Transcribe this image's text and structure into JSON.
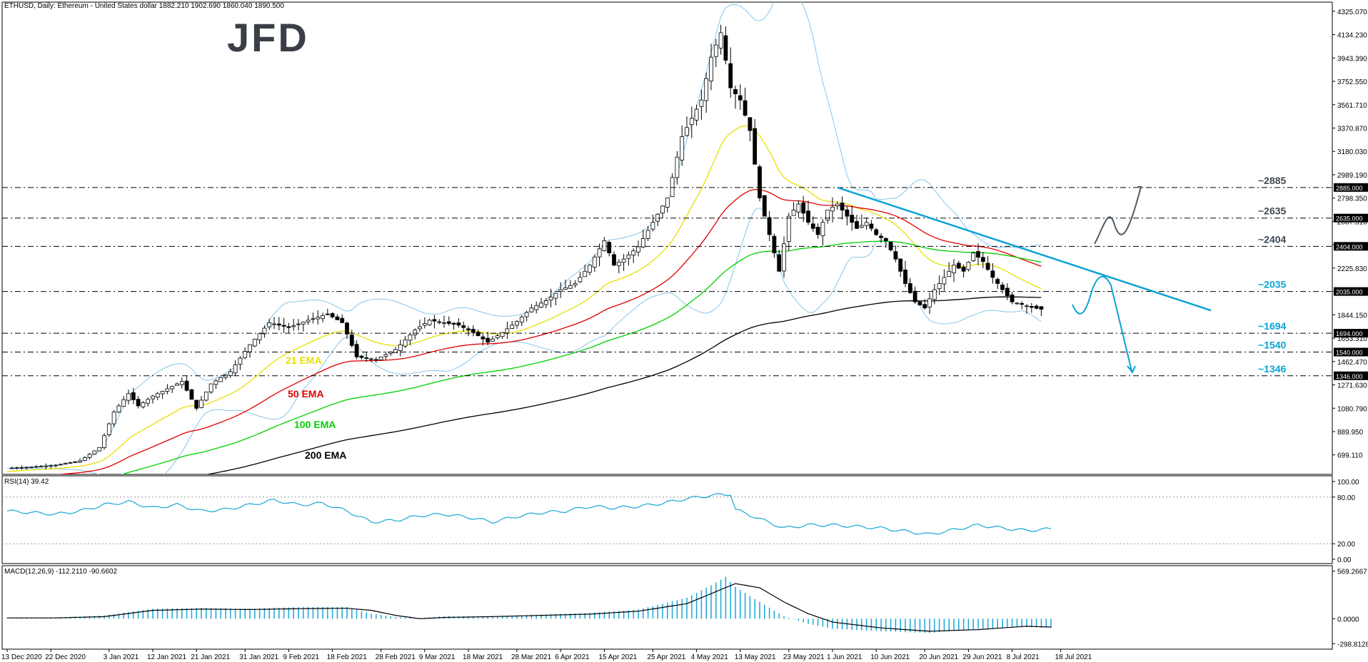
{
  "header": {
    "symbol_info": "ETHUSD, Daily:  Ethereum - United States dollar  1882.210 1902.690 1860.040 1890.500",
    "brand": "JFD"
  },
  "chart_data": {
    "type": "candlestick",
    "price_axis_ticks": [
      "4325.070",
      "4134.230",
      "3943.390",
      "3752.550",
      "3561.710",
      "3370.870",
      "3180.030",
      "2989.190",
      "2798.350",
      "2607.510",
      "2416.670",
      "2225.830",
      "2034.990",
      "1844.150",
      "1653.310",
      "1462.470",
      "1271.630",
      "1080.790",
      "889.950",
      "699.110"
    ],
    "price_range": [
      540,
      4400
    ],
    "date_ticks": [
      {
        "label": "13 Dec 2020",
        "i": 0
      },
      {
        "label": "22 Dec 2020",
        "i": 9
      },
      {
        "label": "3 Jan 2021",
        "i": 21
      },
      {
        "label": "12 Jan 2021",
        "i": 30
      },
      {
        "label": "21 Jan 2021",
        "i": 39
      },
      {
        "label": "31 Jan 2021",
        "i": 49
      },
      {
        "label": "9 Feb 2021",
        "i": 58
      },
      {
        "label": "18 Feb 2021",
        "i": 67
      },
      {
        "label": "28 Feb 2021",
        "i": 77
      },
      {
        "label": "9 Mar 2021",
        "i": 86
      },
      {
        "label": "18 Mar 2021",
        "i": 95
      },
      {
        "label": "28 Mar 2021",
        "i": 105
      },
      {
        "label": "6 Apr 2021",
        "i": 114
      },
      {
        "label": "15 Apr 2021",
        "i": 123
      },
      {
        "label": "25 Apr 2021",
        "i": 133
      },
      {
        "label": "4 May 2021",
        "i": 142
      },
      {
        "label": "13 May 2021",
        "i": 151
      },
      {
        "label": "23 May 2021",
        "i": 161
      },
      {
        "label": "1 Jun 2021",
        "i": 170
      },
      {
        "label": "10 Jun 2021",
        "i": 179
      },
      {
        "label": "20 Jun 2021",
        "i": 189
      },
      {
        "label": "29 Jun 2021",
        "i": 198
      },
      {
        "label": "8 Jul 2021",
        "i": 207
      },
      {
        "label": "18 Jul 2021",
        "i": 217
      }
    ],
    "closes": [
      [
        0,
        590
      ],
      [
        5,
        600
      ],
      [
        10,
        615
      ],
      [
        15,
        650
      ],
      [
        19,
        760
      ],
      [
        22,
        1050
      ],
      [
        25,
        1200
      ],
      [
        27,
        1100
      ],
      [
        30,
        1180
      ],
      [
        33,
        1240
      ],
      [
        36,
        1300
      ],
      [
        39,
        1080
      ],
      [
        42,
        1280
      ],
      [
        46,
        1380
      ],
      [
        50,
        1600
      ],
      [
        54,
        1780
      ],
      [
        58,
        1740
      ],
      [
        62,
        1800
      ],
      [
        66,
        1850
      ],
      [
        69,
        1780
      ],
      [
        72,
        1500
      ],
      [
        76,
        1480
      ],
      [
        80,
        1560
      ],
      [
        84,
        1720
      ],
      [
        87,
        1800
      ],
      [
        90,
        1780
      ],
      [
        93,
        1760
      ],
      [
        96,
        1700
      ],
      [
        99,
        1620
      ],
      [
        102,
        1700
      ],
      [
        105,
        1790
      ],
      [
        108,
        1900
      ],
      [
        111,
        1960
      ],
      [
        114,
        2050
      ],
      [
        117,
        2100
      ],
      [
        120,
        2250
      ],
      [
        123,
        2450
      ],
      [
        125,
        2250
      ],
      [
        127,
        2300
      ],
      [
        130,
        2400
      ],
      [
        133,
        2600
      ],
      [
        136,
        2800
      ],
      [
        139,
        3300
      ],
      [
        141,
        3450
      ],
      [
        143,
        3600
      ],
      [
        145,
        3950
      ],
      [
        147,
        4150
      ],
      [
        149,
        3700
      ],
      [
        151,
        3600
      ],
      [
        153,
        3350
      ],
      [
        155,
        2800
      ],
      [
        157,
        2500
      ],
      [
        159,
        2200
      ],
      [
        161,
        2650
      ],
      [
        163,
        2750
      ],
      [
        165,
        2600
      ],
      [
        167,
        2500
      ],
      [
        169,
        2700
      ],
      [
        171,
        2750
      ],
      [
        173,
        2650
      ],
      [
        175,
        2550
      ],
      [
        177,
        2600
      ],
      [
        179,
        2500
      ],
      [
        181,
        2450
      ],
      [
        183,
        2300
      ],
      [
        185,
        2100
      ],
      [
        187,
        1950
      ],
      [
        189,
        1900
      ],
      [
        191,
        2050
      ],
      [
        193,
        2150
      ],
      [
        195,
        2250
      ],
      [
        197,
        2200
      ],
      [
        199,
        2350
      ],
      [
        201,
        2280
      ],
      [
        203,
        2150
      ],
      [
        205,
        2050
      ],
      [
        207,
        1950
      ],
      [
        209,
        1930
      ],
      [
        211,
        1905
      ],
      [
        213,
        1890
      ]
    ],
    "indicators": {
      "ema21_label": "21 EMA",
      "ema50_label": "50 EMA",
      "ema100_label": "100 EMA",
      "ema200_label": "200 EMA",
      "ema21_color": "#e8e000",
      "ema50_color": "#e00000",
      "ema100_color": "#00d000",
      "ema200_color": "#000000",
      "bollinger_color": "#87c6ea",
      "candle_up": "#ffffff",
      "candle_down": "#000000"
    },
    "horizontal_levels": [
      {
        "value": 2885,
        "label": "~2885",
        "axis": "2885.000",
        "color": "#404a55"
      },
      {
        "value": 2635,
        "label": "~2635",
        "axis": "2635.000",
        "color": "#404a55"
      },
      {
        "value": 2404,
        "label": "~2404",
        "axis": "2404.000",
        "color": "#404a55"
      },
      {
        "value": 2035,
        "label": "~2035",
        "axis": "2035.000",
        "color": "#0aa3d4"
      },
      {
        "value": 1694,
        "label": "~1694",
        "axis": "1694.000",
        "color": "#0aa3d4"
      },
      {
        "value": 1540,
        "label": "~1540",
        "axis": "1540.000",
        "color": "#0aa3d4"
      },
      {
        "value": 1346,
        "label": "~1346",
        "axis": "1346.000",
        "color": "#0aa3d4"
      }
    ],
    "trendline_color": "#0aa3d4",
    "rsi": {
      "title": "RSI(14) 39.42",
      "ticks": [
        "100.00",
        "80.00",
        "20.00",
        "0.00"
      ],
      "levels": [
        80,
        20
      ],
      "color": "#1aa6d6",
      "values": [
        [
          0,
          62
        ],
        [
          5,
          60
        ],
        [
          10,
          58
        ],
        [
          15,
          62
        ],
        [
          20,
          70
        ],
        [
          25,
          74
        ],
        [
          30,
          66
        ],
        [
          35,
          70
        ],
        [
          40,
          62
        ],
        [
          45,
          64
        ],
        [
          50,
          70
        ],
        [
          55,
          76
        ],
        [
          60,
          70
        ],
        [
          65,
          72
        ],
        [
          70,
          62
        ],
        [
          75,
          48
        ],
        [
          80,
          50
        ],
        [
          85,
          56
        ],
        [
          90,
          58
        ],
        [
          95,
          54
        ],
        [
          100,
          48
        ],
        [
          105,
          55
        ],
        [
          110,
          60
        ],
        [
          115,
          62
        ],
        [
          120,
          68
        ],
        [
          125,
          66
        ],
        [
          130,
          68
        ],
        [
          135,
          72
        ],
        [
          140,
          78
        ],
        [
          145,
          82
        ],
        [
          149,
          84
        ],
        [
          150,
          64
        ],
        [
          155,
          52
        ],
        [
          160,
          40
        ],
        [
          165,
          44
        ],
        [
          170,
          44
        ],
        [
          175,
          42
        ],
        [
          180,
          40
        ],
        [
          185,
          36
        ],
        [
          190,
          32
        ],
        [
          195,
          38
        ],
        [
          200,
          44
        ],
        [
          205,
          40
        ],
        [
          210,
          37
        ],
        [
          215,
          39
        ]
      ]
    },
    "macd": {
      "title": "MACD(12,26,9) -112.2110 -90.6602",
      "ticks": [
        "569.2667",
        "0.0000",
        "-298.8128"
      ],
      "range": [
        -330,
        600
      ],
      "hist_color": "#1aa6d6",
      "signal_color": "#000000",
      "histogram": [
        [
          0,
          8
        ],
        [
          10,
          10
        ],
        [
          20,
          40
        ],
        [
          30,
          120
        ],
        [
          40,
          130
        ],
        [
          50,
          120
        ],
        [
          60,
          140
        ],
        [
          70,
          140
        ],
        [
          75,
          60
        ],
        [
          80,
          20
        ],
        [
          85,
          10
        ],
        [
          90,
          30
        ],
        [
          100,
          30
        ],
        [
          110,
          50
        ],
        [
          120,
          70
        ],
        [
          130,
          110
        ],
        [
          140,
          250
        ],
        [
          145,
          400
        ],
        [
          148,
          500
        ],
        [
          150,
          380
        ],
        [
          155,
          200
        ],
        [
          160,
          30
        ],
        [
          165,
          -60
        ],
        [
          170,
          -120
        ],
        [
          180,
          -150
        ],
        [
          190,
          -170
        ],
        [
          200,
          -120
        ],
        [
          210,
          -100
        ],
        [
          215,
          -110
        ]
      ],
      "signal": [
        [
          0,
          10
        ],
        [
          10,
          10
        ],
        [
          20,
          25
        ],
        [
          30,
          100
        ],
        [
          40,
          115
        ],
        [
          50,
          110
        ],
        [
          60,
          120
        ],
        [
          70,
          125
        ],
        [
          75,
          100
        ],
        [
          80,
          40
        ],
        [
          85,
          0
        ],
        [
          90,
          15
        ],
        [
          100,
          25
        ],
        [
          110,
          40
        ],
        [
          120,
          55
        ],
        [
          130,
          90
        ],
        [
          140,
          180
        ],
        [
          145,
          300
        ],
        [
          150,
          420
        ],
        [
          155,
          370
        ],
        [
          160,
          200
        ],
        [
          165,
          60
        ],
        [
          170,
          -40
        ],
        [
          180,
          -110
        ],
        [
          190,
          -150
        ],
        [
          200,
          -130
        ],
        [
          210,
          -90
        ],
        [
          215,
          -100
        ]
      ]
    }
  }
}
